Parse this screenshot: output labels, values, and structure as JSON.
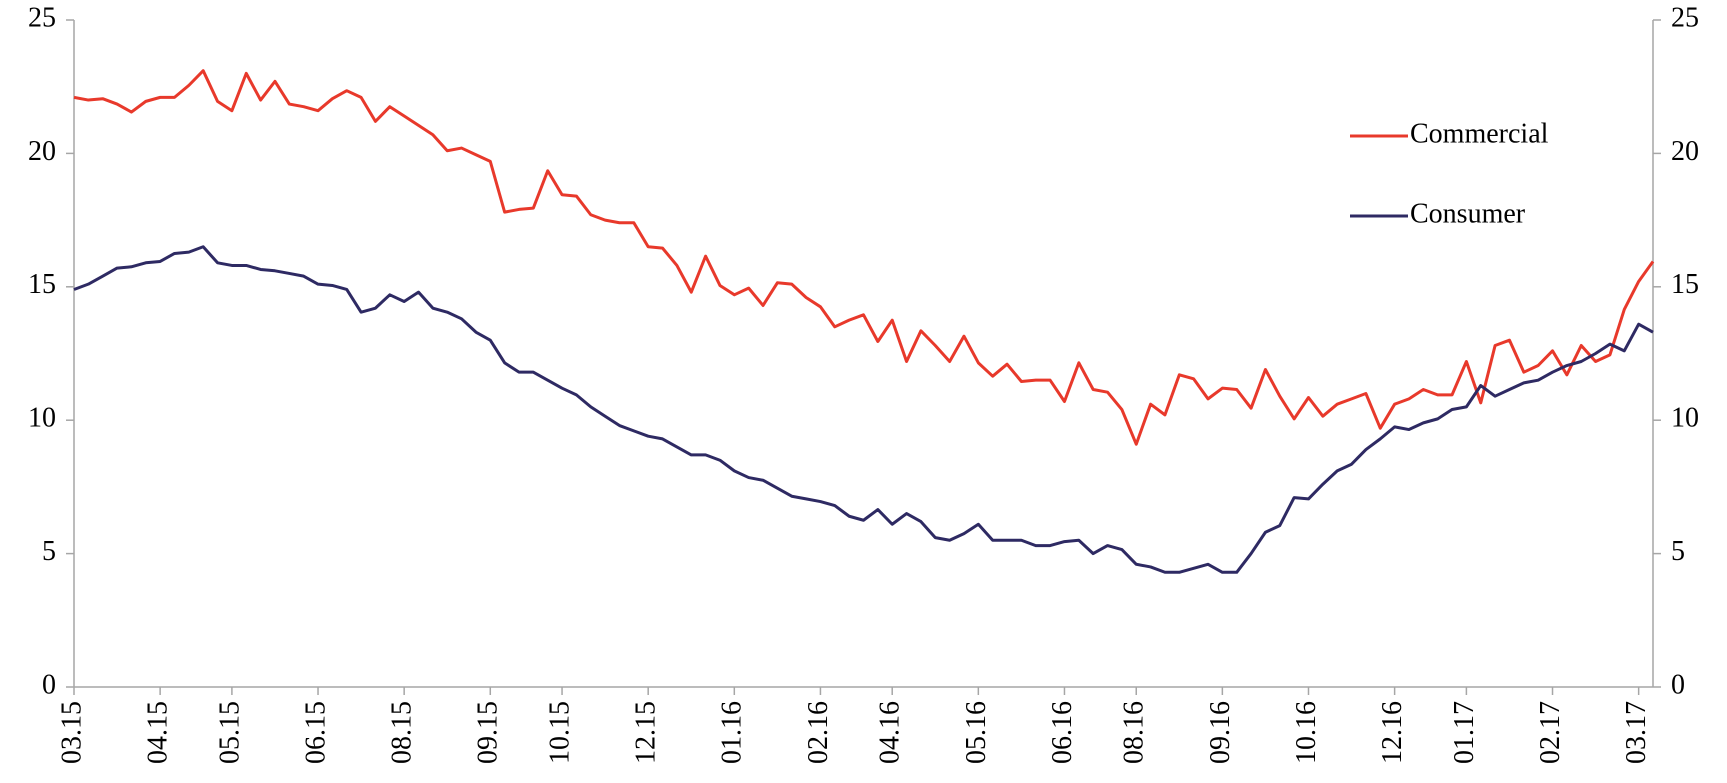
{
  "chart_data": {
    "type": "line",
    "categories": [
      "03.15",
      null,
      null,
      null,
      null,
      null,
      "04.15",
      null,
      null,
      null,
      null,
      "05.15",
      null,
      null,
      null,
      null,
      null,
      "06.15",
      null,
      null,
      null,
      null,
      null,
      "08.15",
      null,
      null,
      null,
      null,
      null,
      "09.15",
      null,
      null,
      null,
      null,
      "10.15",
      null,
      null,
      null,
      null,
      null,
      "12.15",
      null,
      null,
      null,
      null,
      null,
      "01.16",
      null,
      null,
      null,
      null,
      null,
      "02.16",
      null,
      null,
      null,
      null,
      "04.16",
      null,
      null,
      null,
      null,
      null,
      "05.16",
      null,
      null,
      null,
      null,
      null,
      "06.16",
      null,
      null,
      null,
      null,
      "08.16",
      null,
      null,
      null,
      null,
      null,
      "09.16",
      null,
      null,
      null,
      null,
      null,
      "10.16",
      null,
      null,
      null,
      null,
      null,
      "12.16",
      null,
      null,
      null,
      null,
      "01.17",
      null,
      null,
      null,
      null,
      null,
      "02.17",
      null,
      null,
      null,
      null,
      null,
      "03.17",
      null
    ],
    "series": [
      {
        "name": "Commercial",
        "color": "#e8392b",
        "values": [
          22.1,
          22.0,
          22.05,
          21.85,
          21.55,
          21.95,
          22.1,
          22.1,
          22.55,
          23.1,
          21.95,
          21.6,
          23.0,
          22.0,
          22.7,
          21.85,
          21.75,
          21.6,
          22.05,
          22.35,
          22.1,
          21.2,
          21.75,
          21.4,
          21.05,
          20.7,
          20.1,
          20.2,
          19.95,
          19.7,
          17.8,
          17.9,
          17.95,
          19.35,
          18.45,
          18.4,
          17.7,
          17.5,
          17.4,
          17.4,
          16.5,
          16.45,
          15.8,
          14.8,
          16.15,
          15.05,
          14.7,
          14.95,
          14.3,
          15.15,
          15.1,
          14.6,
          14.25,
          13.5,
          13.75,
          13.95,
          12.95,
          13.75,
          12.2,
          13.35,
          12.8,
          12.2,
          13.15,
          12.15,
          11.65,
          12.1,
          11.45,
          11.5,
          11.5,
          10.7,
          12.15,
          11.15,
          11.05,
          10.4,
          9.1,
          10.6,
          10.2,
          11.7,
          11.55,
          10.8,
          11.2,
          11.15,
          10.45,
          11.9,
          10.9,
          10.05,
          10.85,
          10.15,
          10.6,
          10.8,
          11.0,
          9.7,
          10.6,
          10.8,
          11.15,
          10.95,
          10.95,
          12.2,
          10.65,
          12.8,
          13.0,
          11.8,
          12.05,
          12.6,
          11.7,
          12.8,
          12.2,
          12.45,
          14.15,
          15.2,
          15.95
        ]
      },
      {
        "name": "Consumer",
        "color": "#2e2a63",
        "values": [
          14.9,
          15.1,
          15.4,
          15.7,
          15.75,
          15.9,
          15.95,
          16.25,
          16.3,
          16.5,
          15.9,
          15.8,
          15.8,
          15.65,
          15.6,
          15.5,
          15.4,
          15.1,
          15.05,
          14.9,
          14.05,
          14.2,
          14.7,
          14.45,
          14.8,
          14.2,
          14.05,
          13.8,
          13.3,
          13.0,
          12.15,
          11.8,
          11.8,
          11.5,
          11.2,
          10.95,
          10.5,
          10.15,
          9.8,
          9.6,
          9.4,
          9.3,
          9.0,
          8.7,
          8.7,
          8.5,
          8.1,
          7.85,
          7.75,
          7.45,
          7.15,
          7.05,
          6.95,
          6.8,
          6.4,
          6.25,
          6.65,
          6.1,
          6.5,
          6.2,
          5.6,
          5.5,
          5.75,
          6.1,
          5.5,
          5.5,
          5.5,
          5.3,
          5.3,
          5.45,
          5.5,
          5.0,
          5.3,
          5.15,
          4.6,
          4.5,
          4.3,
          4.3,
          4.45,
          4.6,
          4.3,
          4.3,
          5.0,
          5.8,
          6.05,
          7.1,
          7.05,
          7.6,
          8.1,
          8.35,
          8.9,
          9.3,
          9.75,
          9.65,
          9.9,
          10.05,
          10.4,
          10.5,
          11.3,
          10.9,
          11.15,
          11.4,
          11.5,
          11.8,
          12.05,
          12.2,
          12.5,
          12.85,
          12.6,
          13.6,
          13.3
        ]
      }
    ],
    "ylim": [
      0,
      25
    ],
    "yticks": [
      0,
      5,
      10,
      15,
      20,
      25
    ],
    "y2lim": [
      0,
      25
    ],
    "y2ticks": [
      0,
      5,
      10,
      15,
      20,
      25
    ],
    "grid": false,
    "legend": "right"
  }
}
